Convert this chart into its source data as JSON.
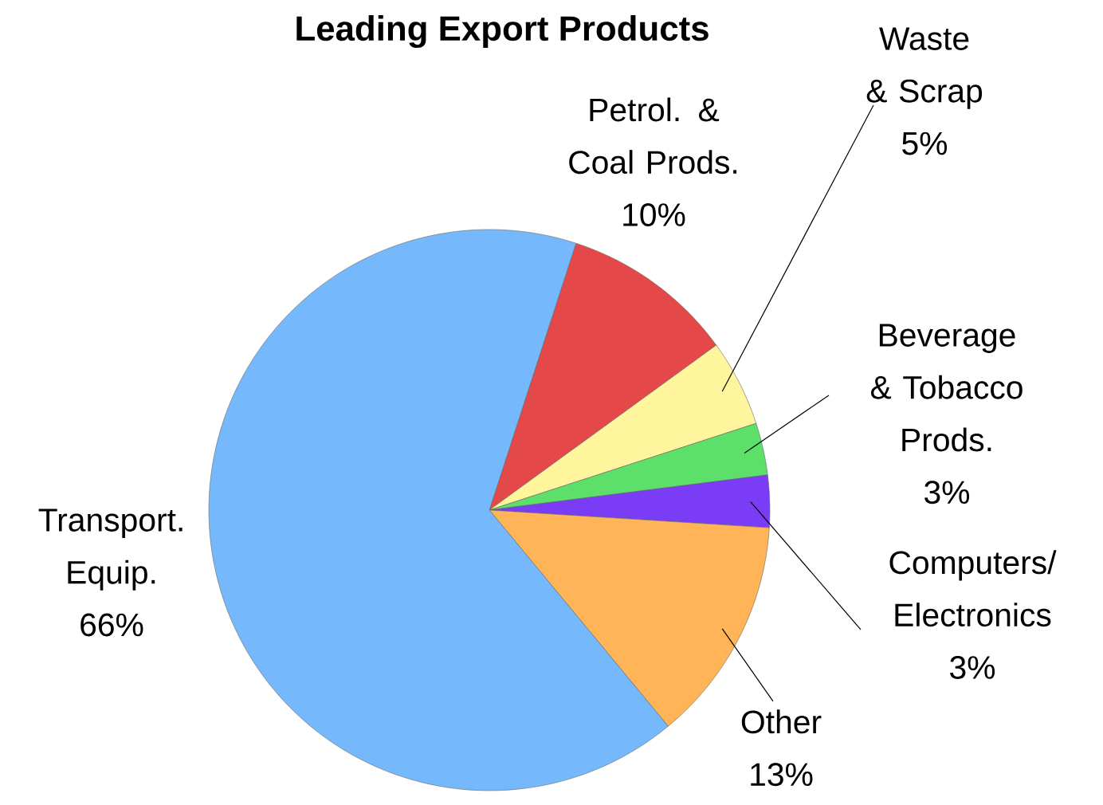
{
  "chart_data": {
    "type": "pie",
    "title": "Leading Export Products",
    "categories": [
      "Petrol. & Coal Prods.",
      "Waste & Scrap",
      "Beverage & Tobacco Prods.",
      "Computers/ Electronics",
      "Other",
      "Transport. Equip."
    ],
    "values": [
      10,
      5,
      3,
      3,
      13,
      66
    ],
    "value_labels": [
      "10%",
      "5%",
      "3%",
      "3%",
      "13%",
      "66%"
    ],
    "colors": [
      "#e54848",
      "#fff59d",
      "#5ce06a",
      "#7a3cf5",
      "#ffb557",
      "#75b9fc"
    ]
  }
}
